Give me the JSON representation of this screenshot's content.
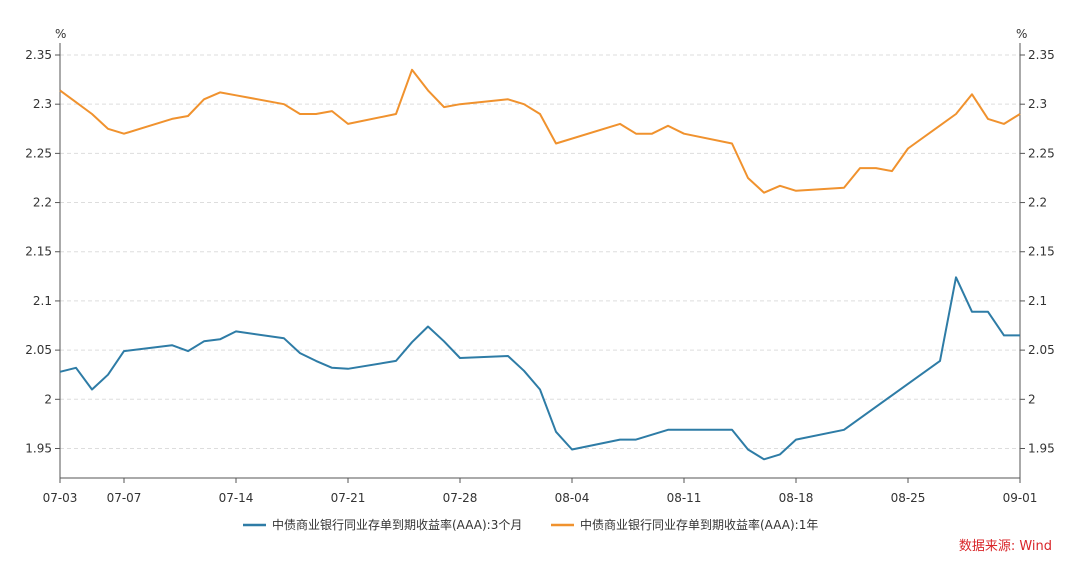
{
  "chart_data": {
    "type": "line",
    "y_unit_left": "%",
    "y_unit_right": "%",
    "ylim": [
      1.92,
      2.35
    ],
    "yticks": [
      2.35,
      2.3,
      2.25,
      2.2,
      2.15,
      2.1,
      2.05,
      2.0,
      1.95
    ],
    "ytick_labels": [
      "2.35",
      "2.3",
      "2.25",
      "2.2",
      "2.15",
      "2.1",
      "2.05",
      "2",
      "1.95"
    ],
    "xlim": [
      "2025-07-03",
      "2025-09-01"
    ],
    "xticks": [
      "2025-07-03",
      "2025-07-07",
      "2025-07-14",
      "2025-07-21",
      "2025-07-28",
      "2025-08-04",
      "2025-08-11",
      "2025-08-18",
      "2025-08-25",
      "2025-09-01"
    ],
    "xtick_labels": [
      "07-03",
      "07-07",
      "07-14",
      "07-21",
      "07-28",
      "08-04",
      "08-11",
      "08-18",
      "08-25",
      "09-01"
    ],
    "grid": true,
    "legend_position": "bottom",
    "series": [
      {
        "name": "中债商业银行同业存单到期收益率(AAA):3个月",
        "color": "#2e7ca6",
        "x": [
          "2025-07-03",
          "2025-07-04",
          "2025-07-05",
          "2025-07-06",
          "2025-07-07",
          "2025-07-10",
          "2025-07-11",
          "2025-07-12",
          "2025-07-13",
          "2025-07-14",
          "2025-07-17",
          "2025-07-18",
          "2025-07-19",
          "2025-07-20",
          "2025-07-21",
          "2025-07-24",
          "2025-07-25",
          "2025-07-26",
          "2025-07-27",
          "2025-07-28",
          "2025-07-31",
          "2025-08-01",
          "2025-08-02",
          "2025-08-03",
          "2025-08-04",
          "2025-08-07",
          "2025-08-08",
          "2025-08-10",
          "2025-08-14",
          "2025-08-15",
          "2025-08-16",
          "2025-08-17",
          "2025-08-18",
          "2025-08-21",
          "2025-08-27",
          "2025-08-28",
          "2025-08-29",
          "2025-08-30",
          "2025-08-31",
          "2025-09-01"
        ],
        "y": [
          2.028,
          2.032,
          2.01,
          2.025,
          2.049,
          2.055,
          2.049,
          2.059,
          2.061,
          2.069,
          2.062,
          2.047,
          2.039,
          2.032,
          2.031,
          2.039,
          2.058,
          2.074,
          2.059,
          2.042,
          2.044,
          2.029,
          2.01,
          1.967,
          1.949,
          1.959,
          1.959,
          1.969,
          1.969,
          1.949,
          1.939,
          1.944,
          1.959,
          1.969,
          2.039,
          2.124,
          2.089,
          2.089,
          2.065,
          2.065
        ]
      },
      {
        "name": "中债商业银行同业存单到期收益率(AAA):1年",
        "color": "#f0922e",
        "x": [
          "2025-07-03",
          "2025-07-04",
          "2025-07-05",
          "2025-07-06",
          "2025-07-07",
          "2025-07-10",
          "2025-07-11",
          "2025-07-12",
          "2025-07-13",
          "2025-07-14",
          "2025-07-17",
          "2025-07-18",
          "2025-07-19",
          "2025-07-20",
          "2025-07-21",
          "2025-07-24",
          "2025-07-25",
          "2025-07-26",
          "2025-07-27",
          "2025-07-28",
          "2025-07-31",
          "2025-08-01",
          "2025-08-02",
          "2025-08-03",
          "2025-08-07",
          "2025-08-08",
          "2025-08-09",
          "2025-08-10",
          "2025-08-11",
          "2025-08-14",
          "2025-08-15",
          "2025-08-16",
          "2025-08-17",
          "2025-08-18",
          "2025-08-21",
          "2025-08-22",
          "2025-08-23",
          "2025-08-24",
          "2025-08-25",
          "2025-08-28",
          "2025-08-29",
          "2025-08-30",
          "2025-08-31",
          "2025-09-01"
        ],
        "y": [
          2.314,
          2.302,
          2.29,
          2.275,
          2.27,
          2.285,
          2.288,
          2.305,
          2.312,
          2.309,
          2.3,
          2.29,
          2.29,
          2.293,
          2.28,
          2.29,
          2.335,
          2.314,
          2.297,
          2.3,
          2.305,
          2.3,
          2.29,
          2.26,
          2.28,
          2.27,
          2.27,
          2.278,
          2.27,
          2.26,
          2.225,
          2.21,
          2.217,
          2.212,
          2.215,
          2.235,
          2.235,
          2.232,
          2.255,
          2.29,
          2.31,
          2.285,
          2.28,
          2.29
        ]
      }
    ],
    "source": "数据来源: Wind"
  }
}
